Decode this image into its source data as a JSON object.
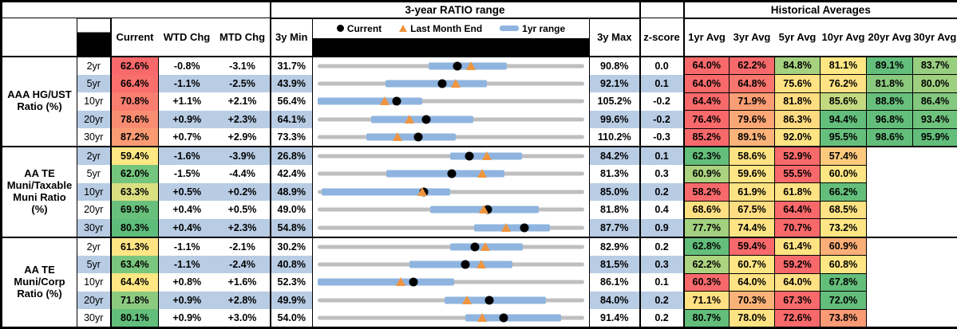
{
  "header": {
    "range_title": "3-year RATIO range",
    "hist_title": "Historical Averages",
    "current": "Current",
    "wtd": "WTD Chg",
    "mtd": "MTD Chg",
    "min": "3y Min",
    "max": "3y Max",
    "z": "z-score",
    "avg_cols": [
      "1yr Avg",
      "3yr Avg",
      "5yr Avg",
      "10yr Avg",
      "20yr Avg",
      "30yr Avg"
    ]
  },
  "legend": {
    "current": "Current",
    "lme": "Last Month End",
    "range": "1yr range"
  },
  "colors": {
    "stripe": "#B8CCE4",
    "track": "#BFBFBF",
    "bar": "#8FB4DF",
    "triangle": "#F0953F",
    "dot": "#000000",
    "heat_red": "#F8696B",
    "heat_yellow": "#FFE983",
    "heat_green": "#63BE7B"
  },
  "chart_data": {
    "type": "table",
    "title": "3-year RATIO range with Historical Averages",
    "groups": [
      {
        "label": "AAA HG/UST Ratio (%)",
        "rows": [
          {
            "tenor": "2yr",
            "cur": "62.6%",
            "cur_bg": "#F8696B",
            "wtd": "-0.8%",
            "mtd": "-3.1%",
            "min": "31.7%",
            "max": "90.8%",
            "z": "0.0",
            "plot": {
              "min": 31.7,
              "max": 90.8,
              "bar": [
                56.3,
                73.6
              ],
              "dot": 62.6,
              "tri": 65.7
            },
            "avgs": [
              {
                "v": "64.0%",
                "bg": "#F8696B"
              },
              {
                "v": "62.2%",
                "bg": "#F8696B"
              },
              {
                "v": "84.8%",
                "bg": "#A6D17F"
              },
              {
                "v": "81.1%",
                "bg": "#FFE884"
              },
              {
                "v": "89.1%",
                "bg": "#63BE7B"
              },
              {
                "v": "83.7%",
                "bg": "#98CE7F"
              }
            ]
          },
          {
            "tenor": "5yr",
            "cur": "66.4%",
            "cur_bg": "#F86F6C",
            "wtd": "-1.1%",
            "mtd": "-2.5%",
            "min": "43.9%",
            "max": "92.1%",
            "z": "0.1",
            "plot": {
              "min": 43.9,
              "max": 92.1,
              "bar": [
                56.2,
                74.5
              ],
              "dot": 66.4,
              "tri": 68.9
            },
            "avgs": [
              {
                "v": "64.0%",
                "bg": "#F8696B"
              },
              {
                "v": "64.8%",
                "bg": "#F8766D"
              },
              {
                "v": "75.6%",
                "bg": "#FFE283"
              },
              {
                "v": "76.2%",
                "bg": "#FFE283"
              },
              {
                "v": "81.8%",
                "bg": "#8BCA7E"
              },
              {
                "v": "80.0%",
                "bg": "#9ED080"
              }
            ]
          },
          {
            "tenor": "10yr",
            "cur": "70.8%",
            "cur_bg": "#F97E6F",
            "wtd": "+1.1%",
            "mtd": "+2.1%",
            "min": "56.4%",
            "max": "105.2%",
            "z": "-0.2",
            "plot": {
              "min": 56.4,
              "max": 105.2,
              "bar": [
                56.4,
                75.5
              ],
              "dot": 70.8,
              "tri": 68.7
            },
            "avgs": [
              {
                "v": "64.4%",
                "bg": "#F8696B"
              },
              {
                "v": "71.9%",
                "bg": "#FB9E75"
              },
              {
                "v": "81.8%",
                "bg": "#FFDE82"
              },
              {
                "v": "85.6%",
                "bg": "#C4DA81"
              },
              {
                "v": "88.8%",
                "bg": "#68C07C"
              },
              {
                "v": "86.4%",
                "bg": "#83C87E"
              }
            ]
          },
          {
            "tenor": "20yr",
            "cur": "78.6%",
            "cur_bg": "#F98D72",
            "wtd": "+0.9%",
            "mtd": "+2.3%",
            "min": "64.1%",
            "max": "99.6%",
            "z": "-0.2",
            "plot": {
              "min": 64.1,
              "max": 99.6,
              "bar": [
                71.2,
                84.8
              ],
              "dot": 78.6,
              "tri": 76.3
            },
            "avgs": [
              {
                "v": "76.4%",
                "bg": "#F8696B"
              },
              {
                "v": "79.6%",
                "bg": "#FBA876"
              },
              {
                "v": "86.3%",
                "bg": "#FFDA81"
              },
              {
                "v": "94.4%",
                "bg": "#63BE7B"
              },
              {
                "v": "96.8%",
                "bg": "#63BE7B"
              },
              {
                "v": "93.4%",
                "bg": "#6FC27C"
              }
            ]
          },
          {
            "tenor": "30yr",
            "cur": "87.2%",
            "cur_bg": "#FA9B74",
            "wtd": "+0.7%",
            "mtd": "+2.9%",
            "min": "73.3%",
            "max": "110.2%",
            "z": "-0.3",
            "plot": {
              "min": 73.3,
              "max": 110.2,
              "bar": [
                80.0,
                92.4
              ],
              "dot": 87.2,
              "tri": 84.3
            },
            "avgs": [
              {
                "v": "85.2%",
                "bg": "#F8696B"
              },
              {
                "v": "89.1%",
                "bg": "#FCB379"
              },
              {
                "v": "92.0%",
                "bg": "#FFE483"
              },
              {
                "v": "95.5%",
                "bg": "#66BF7C"
              },
              {
                "v": "98.6%",
                "bg": "#63BE7B"
              },
              {
                "v": "95.9%",
                "bg": "#63BE7B"
              }
            ]
          }
        ]
      },
      {
        "label": "AA TE Muni/Taxable Muni Ratio (%)",
        "rows": [
          {
            "tenor": "2yr",
            "cur": "59.4%",
            "cur_bg": "#FFE783",
            "wtd": "-1.6%",
            "mtd": "-3.9%",
            "min": "26.8%",
            "max": "84.2%",
            "z": "0.1",
            "plot": {
              "min": 26.8,
              "max": 84.2,
              "bar": [
                55.3,
                70.8
              ],
              "dot": 59.4,
              "tri": 63.3
            },
            "avgs": [
              {
                "v": "62.3%",
                "bg": "#63BE7B"
              },
              {
                "v": "58.6%",
                "bg": "#FFE383"
              },
              {
                "v": "52.9%",
                "bg": "#F8696B"
              },
              {
                "v": "57.4%",
                "bg": "#FDC97D"
              },
              {
                "v": "",
                "bg": ""
              },
              {
                "v": "",
                "bg": ""
              }
            ]
          },
          {
            "tenor": "5yr",
            "cur": "62.0%",
            "cur_bg": "#74C57D",
            "wtd": "-1.5%",
            "mtd": "-4.4%",
            "min": "42.4%",
            "max": "81.3%",
            "z": "0.3",
            "plot": {
              "min": 42.4,
              "max": 81.3,
              "bar": [
                52.4,
                69.6
              ],
              "dot": 62.0,
              "tri": 66.4
            },
            "avgs": [
              {
                "v": "60.9%",
                "bg": "#ABD37F"
              },
              {
                "v": "59.6%",
                "bg": "#FFE583"
              },
              {
                "v": "55.5%",
                "bg": "#F8696B"
              },
              {
                "v": "60.0%",
                "bg": "#FFE684"
              },
              {
                "v": "",
                "bg": ""
              },
              {
                "v": "",
                "bg": ""
              }
            ]
          },
          {
            "tenor": "10yr",
            "cur": "63.3%",
            "cur_bg": "#DADF82",
            "wtd": "+0.5%",
            "mtd": "+0.2%",
            "min": "48.9%",
            "max": "85.0%",
            "z": "0.2",
            "plot": {
              "min": 48.9,
              "max": 85.0,
              "bar": [
                49.4,
                66.8
              ],
              "dot": 63.3,
              "tri": 63.1
            },
            "avgs": [
              {
                "v": "58.2%",
                "bg": "#F8696B"
              },
              {
                "v": "61.9%",
                "bg": "#FFE283"
              },
              {
                "v": "61.8%",
                "bg": "#FFE283"
              },
              {
                "v": "66.2%",
                "bg": "#63BE7B"
              },
              {
                "v": "",
                "bg": ""
              },
              {
                "v": "",
                "bg": ""
              }
            ]
          },
          {
            "tenor": "20yr",
            "cur": "69.9%",
            "cur_bg": "#68C07C",
            "wtd": "+0.4%",
            "mtd": "+0.5%",
            "min": "49.0%",
            "max": "81.8%",
            "z": "0.4",
            "plot": {
              "min": 49.0,
              "max": 81.8,
              "bar": [
                62.8,
                76.2
              ],
              "dot": 69.9,
              "tri": 69.4
            },
            "avgs": [
              {
                "v": "68.6%",
                "bg": "#FFE082"
              },
              {
                "v": "67.5%",
                "bg": "#FFDD82"
              },
              {
                "v": "64.4%",
                "bg": "#F8696B"
              },
              {
                "v": "68.5%",
                "bg": "#FFE283"
              },
              {
                "v": "",
                "bg": ""
              },
              {
                "v": "",
                "bg": ""
              }
            ]
          },
          {
            "tenor": "30yr",
            "cur": "80.3%",
            "cur_bg": "#5FBD7B",
            "wtd": "+0.4%",
            "mtd": "+2.3%",
            "min": "54.8%",
            "max": "87.7%",
            "z": "0.9",
            "plot": {
              "min": 54.8,
              "max": 87.7,
              "bar": [
                74.1,
                83.5
              ],
              "dot": 80.3,
              "tri": 78.0
            },
            "avgs": [
              {
                "v": "77.7%",
                "bg": "#A3D17F"
              },
              {
                "v": "74.4%",
                "bg": "#FFE483"
              },
              {
                "v": "70.7%",
                "bg": "#F8696B"
              },
              {
                "v": "73.2%",
                "bg": "#FFE684"
              },
              {
                "v": "",
                "bg": ""
              },
              {
                "v": "",
                "bg": ""
              }
            ]
          }
        ]
      },
      {
        "label": "AA TE Muni/Corp Ratio (%)",
        "rows": [
          {
            "tenor": "2yr",
            "cur": "61.3%",
            "cur_bg": "#FFE583",
            "wtd": "-1.1%",
            "mtd": "-2.1%",
            "min": "30.2%",
            "max": "82.9%",
            "z": "0.2",
            "plot": {
              "min": 30.2,
              "max": 82.9,
              "bar": [
                56.4,
                70.8
              ],
              "dot": 61.3,
              "tri": 63.4
            },
            "avgs": [
              {
                "v": "62.8%",
                "bg": "#63BE7B"
              },
              {
                "v": "59.4%",
                "bg": "#F8696B"
              },
              {
                "v": "61.4%",
                "bg": "#FFE383"
              },
              {
                "v": "60.9%",
                "bg": "#FBAE77"
              },
              {
                "v": "",
                "bg": ""
              },
              {
                "v": "",
                "bg": ""
              }
            ]
          },
          {
            "tenor": "5yr",
            "cur": "63.4%",
            "cur_bg": "#7AC67E",
            "wtd": "-1.1%",
            "mtd": "-2.4%",
            "min": "40.8%",
            "max": "81.5%",
            "z": "0.3",
            "plot": {
              "min": 40.8,
              "max": 81.5,
              "bar": [
                54.8,
                70.5
              ],
              "dot": 63.4,
              "tri": 65.8
            },
            "avgs": [
              {
                "v": "62.2%",
                "bg": "#ACD37F"
              },
              {
                "v": "60.7%",
                "bg": "#FFE584"
              },
              {
                "v": "59.2%",
                "bg": "#F8696B"
              },
              {
                "v": "60.8%",
                "bg": "#FFE684"
              },
              {
                "v": "",
                "bg": ""
              },
              {
                "v": "",
                "bg": ""
              }
            ]
          },
          {
            "tenor": "10yr",
            "cur": "64.4%",
            "cur_bg": "#FFE883",
            "wtd": "+0.8%",
            "mtd": "+1.6%",
            "min": "52.3%",
            "max": "86.1%",
            "z": "0.1",
            "plot": {
              "min": 52.3,
              "max": 86.1,
              "bar": [
                52.3,
                69.6
              ],
              "dot": 64.4,
              "tri": 62.8
            },
            "avgs": [
              {
                "v": "60.3%",
                "bg": "#F8696B"
              },
              {
                "v": "64.0%",
                "bg": "#FFE283"
              },
              {
                "v": "64.0%",
                "bg": "#FFE183"
              },
              {
                "v": "67.8%",
                "bg": "#63BE7B"
              },
              {
                "v": "",
                "bg": ""
              },
              {
                "v": "",
                "bg": ""
              }
            ]
          },
          {
            "tenor": "20yr",
            "cur": "71.8%",
            "cur_bg": "#8CCB7F",
            "wtd": "+0.9%",
            "mtd": "+2.8%",
            "min": "49.9%",
            "max": "84.0%",
            "z": "0.2",
            "plot": {
              "min": 49.9,
              "max": 84.0,
              "bar": [
                66.1,
                79.1
              ],
              "dot": 71.8,
              "tri": 69.0
            },
            "avgs": [
              {
                "v": "71.1%",
                "bg": "#FFE082"
              },
              {
                "v": "70.3%",
                "bg": "#FBB278"
              },
              {
                "v": "67.3%",
                "bg": "#F8696B"
              },
              {
                "v": "72.0%",
                "bg": "#63BE7B"
              },
              {
                "v": "",
                "bg": ""
              },
              {
                "v": "",
                "bg": ""
              }
            ]
          },
          {
            "tenor": "30yr",
            "cur": "80.1%",
            "cur_bg": "#63BE7B",
            "wtd": "+0.9%",
            "mtd": "+3.0%",
            "min": "54.0%",
            "max": "91.4%",
            "z": "0.2",
            "plot": {
              "min": 54.0,
              "max": 91.4,
              "bar": [
                74.7,
                88.1
              ],
              "dot": 80.1,
              "tri": 77.1
            },
            "avgs": [
              {
                "v": "80.7%",
                "bg": "#63BE7B"
              },
              {
                "v": "78.0%",
                "bg": "#FFE383"
              },
              {
                "v": "72.6%",
                "bg": "#F8696B"
              },
              {
                "v": "73.8%",
                "bg": "#FA9B75"
              },
              {
                "v": "",
                "bg": ""
              },
              {
                "v": "",
                "bg": ""
              }
            ]
          }
        ]
      }
    ]
  }
}
